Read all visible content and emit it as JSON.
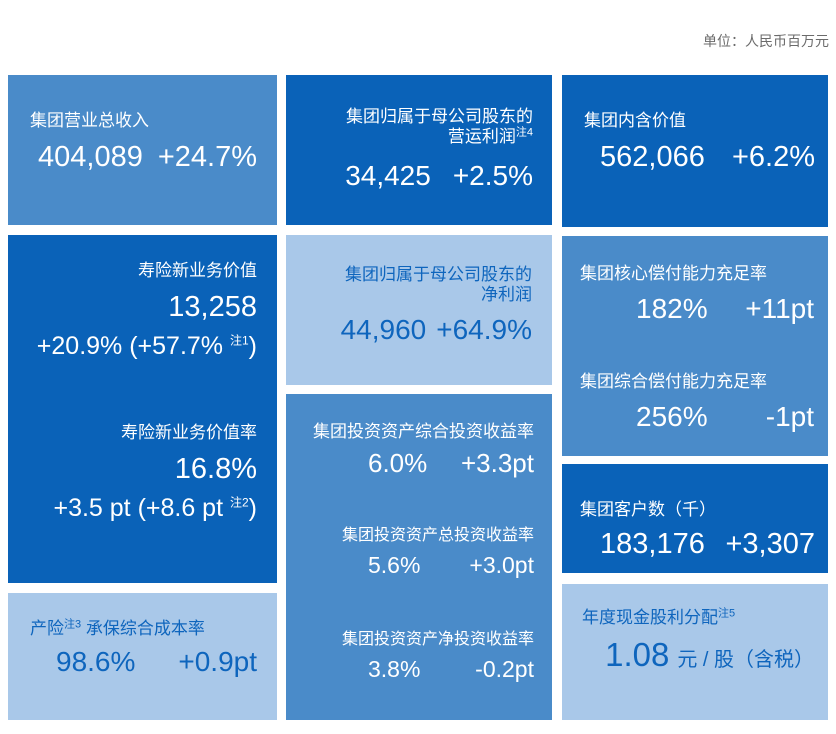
{
  "unit_label": "单位：人民币百万元",
  "colors": {
    "dark_blue": "#0a62b8",
    "medium_blue": "#4a8bc9",
    "light_blue": "#a9c8e9",
    "text_on_light": "#0e65bd",
    "unit_text": "#6b6b6b",
    "page_bg": "#ffffff",
    "value_text": "#ffffff"
  },
  "tiles": {
    "revenue": {
      "title": "集团营业总收入",
      "value": "404,089",
      "delta": "+24.7%"
    },
    "nbv": {
      "title": "寿险新业务价值",
      "value": "13,258",
      "delta_main": "+20.9% (+57.7% ",
      "delta_note": "注1",
      "delta_close": ")"
    },
    "nbv_margin": {
      "title": "寿险新业务价值率",
      "value": "16.8%",
      "delta_main": "+3.5 pt (+8.6 pt ",
      "delta_note": "注2",
      "delta_close": ")"
    },
    "combined_ratio": {
      "title_main": "产险",
      "title_note": "注3",
      "title_rest": " 承保综合成本率",
      "value": "98.6%",
      "delta": "+0.9pt"
    },
    "operating_profit": {
      "title_line1": "集团归属于母公司股东的",
      "title_line2": "营运利润",
      "title_note": "注4",
      "value": "34,425",
      "delta": "+2.5%"
    },
    "net_profit": {
      "title_line1": "集团归属于母公司股东的",
      "title_line2": "净利润",
      "value": "44,960",
      "delta": "+64.9%"
    },
    "investment": {
      "comprehensive": {
        "title": "集团投资资产综合投资收益率",
        "value": "6.0%",
        "delta": "+3.3pt"
      },
      "total": {
        "title": "集团投资资产总投资收益率",
        "value": "5.6%",
        "delta": "+3.0pt"
      },
      "net": {
        "title": "集团投资资产净投资收益率",
        "value": "3.8%",
        "delta": "-0.2pt"
      }
    },
    "embedded_value": {
      "title": "集团内含价值",
      "value": "562,066",
      "delta": "+6.2%"
    },
    "solvency": {
      "core": {
        "title": "集团核心偿付能力充足率",
        "value": "182%",
        "delta": "+11pt"
      },
      "comprehensive": {
        "title": "集团综合偿付能力充足率",
        "value": "256%",
        "delta": "-1pt"
      }
    },
    "customers": {
      "title": "集团客户数（千）",
      "value": "183,176",
      "delta": "+3,307"
    },
    "dividend": {
      "title": "年度现金股利分配",
      "title_note": "注5",
      "value": "1.08",
      "value_suffix": "元 / 股（含税）"
    }
  }
}
